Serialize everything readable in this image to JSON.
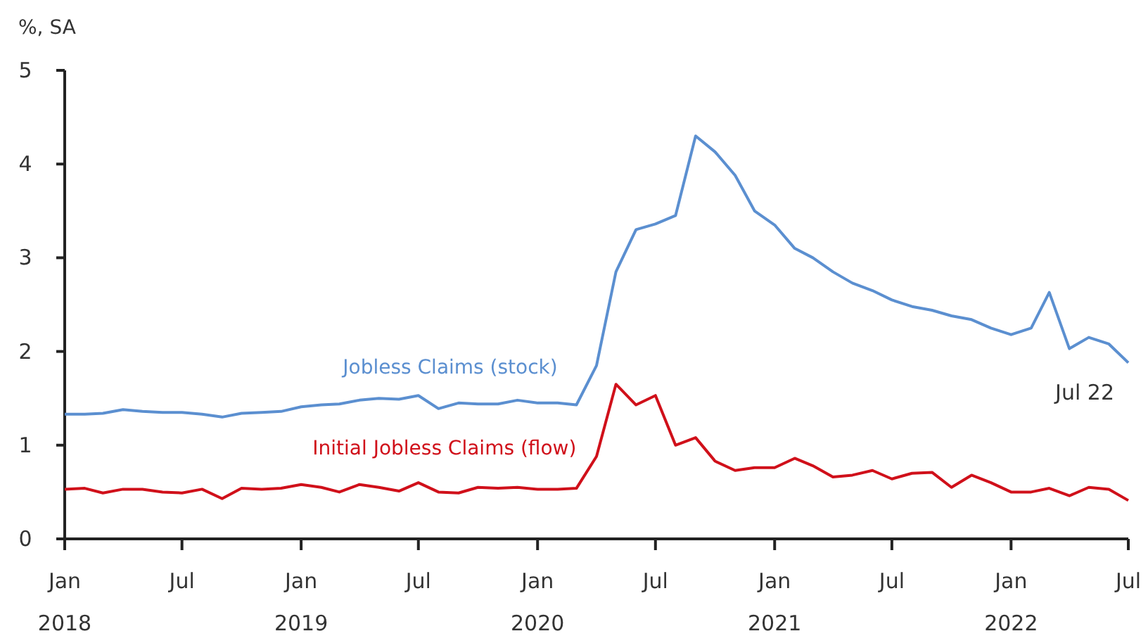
{
  "chart_data": {
    "type": "line",
    "ylabel": "%, SA",
    "x": [
      "2018-01",
      "2018-02",
      "2018-03",
      "2018-04",
      "2018-05",
      "2018-06",
      "2018-07",
      "2018-08",
      "2018-09",
      "2018-10",
      "2018-11",
      "2018-12",
      "2019-01",
      "2019-02",
      "2019-03",
      "2019-04",
      "2019-05",
      "2019-06",
      "2019-07",
      "2019-08",
      "2019-09",
      "2019-10",
      "2019-11",
      "2019-12",
      "2020-01",
      "2020-02",
      "2020-03",
      "2020-04",
      "2020-05",
      "2020-06",
      "2020-07",
      "2020-08",
      "2020-09",
      "2020-10",
      "2020-11",
      "2020-12",
      "2021-01",
      "2021-02",
      "2021-03",
      "2021-04",
      "2021-05",
      "2021-06",
      "2021-07",
      "2021-08",
      "2021-09",
      "2021-10",
      "2021-11",
      "2021-12",
      "2022-01",
      "2022-02",
      "2022-03",
      "2022-04",
      "2022-05",
      "2022-06",
      "2022-07"
    ],
    "series": [
      {
        "name": "Jobless Claims (stock)",
        "color": "#5b8fd0",
        "values": [
          1.33,
          1.33,
          1.34,
          1.38,
          1.36,
          1.35,
          1.35,
          1.33,
          1.3,
          1.34,
          1.35,
          1.36,
          1.41,
          1.43,
          1.44,
          1.48,
          1.5,
          1.49,
          1.53,
          1.39,
          1.45,
          1.44,
          1.44,
          1.48,
          1.45,
          1.45,
          1.43,
          1.85,
          2.85,
          3.3,
          3.36,
          3.45,
          4.3,
          4.13,
          3.88,
          3.5,
          3.35,
          3.1,
          3.0,
          2.85,
          2.73,
          2.65,
          2.55,
          2.48,
          2.44,
          2.38,
          2.34,
          2.25,
          2.18,
          2.25,
          2.63,
          2.03,
          2.15,
          2.08,
          1.88
        ]
      },
      {
        "name": "Initial Jobless Claims (flow)",
        "color": "#d0101a",
        "values": [
          0.53,
          0.54,
          0.49,
          0.53,
          0.53,
          0.5,
          0.49,
          0.53,
          0.43,
          0.54,
          0.53,
          0.54,
          0.58,
          0.55,
          0.5,
          0.58,
          0.55,
          0.51,
          0.6,
          0.5,
          0.49,
          0.55,
          0.54,
          0.55,
          0.53,
          0.53,
          0.54,
          0.88,
          1.65,
          1.43,
          1.53,
          1.0,
          1.08,
          0.83,
          0.73,
          0.76,
          0.76,
          0.86,
          0.78,
          0.66,
          0.68,
          0.73,
          0.64,
          0.7,
          0.71,
          0.55,
          0.68,
          0.6,
          0.5,
          0.5,
          0.54,
          0.46,
          0.55,
          0.53,
          0.41
        ]
      }
    ],
    "xlim": [
      "2018-01",
      "2022-07"
    ],
    "xticks": [
      {
        "value": "2018-01",
        "label": "Jan\n2018"
      },
      {
        "value": "2018-07",
        "label": "Jul"
      },
      {
        "value": "2019-01",
        "label": "Jan\n2019"
      },
      {
        "value": "2019-07",
        "label": "Jul"
      },
      {
        "value": "2020-01",
        "label": "Jan\n2020"
      },
      {
        "value": "2020-07",
        "label": "Jul"
      },
      {
        "value": "2021-01",
        "label": "Jan\n2021"
      },
      {
        "value": "2021-07",
        "label": "Jul"
      },
      {
        "value": "2022-01",
        "label": "Jan\n2022"
      },
      {
        "value": "2022-07",
        "label": "Jul"
      }
    ],
    "ylim": [
      0,
      5
    ],
    "yticks": [
      0,
      1,
      2,
      3,
      4,
      5
    ],
    "annotations": [
      {
        "text": "Jul 22",
        "x": "2022-07",
        "y": 1.88
      }
    ]
  }
}
